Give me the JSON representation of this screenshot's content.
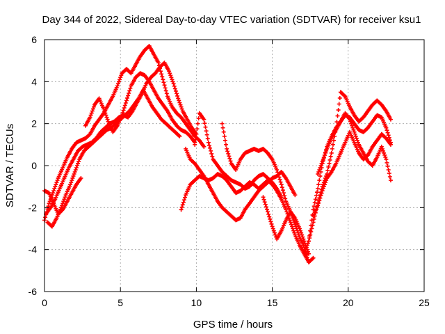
{
  "chart_data": {
    "type": "scatter",
    "title": "Day 344 of 2022, Sidereal Day-to-day VTEC variation (SDTVAR) for receiver ksu1",
    "xlabel": "GPS time / hours",
    "ylabel": "SDTVAR / TECUs",
    "xlim": [
      0,
      25
    ],
    "ylim": [
      -6,
      6
    ],
    "x_ticks": [
      "0",
      "5",
      "10",
      "15",
      "20",
      "25"
    ],
    "y_ticks": [
      "-6",
      "-4",
      "-2",
      "0",
      "2",
      "4",
      "6"
    ],
    "grid": true,
    "marker": "plus",
    "color": "#ff0000",
    "series": [
      {
        "x": [
          0.0,
          0.3,
          0.6,
          0.9,
          1.2,
          1.5,
          1.8,
          2.1,
          2.4,
          2.7,
          3.0,
          3.3,
          3.6,
          3.9,
          4.2,
          4.5,
          4.8,
          5.1,
          5.4,
          5.7,
          6.0,
          6.3,
          6.6,
          6.9,
          7.2,
          7.5,
          7.8,
          8.1,
          8.4,
          8.7,
          9.0,
          9.3,
          9.6,
          9.9,
          10.2,
          10.5
        ],
        "y": [
          -2.6,
          -1.8,
          -1.2,
          -0.6,
          -0.1,
          0.4,
          0.8,
          1.1,
          1.2,
          1.3,
          1.5,
          1.9,
          2.2,
          2.5,
          2.9,
          3.3,
          3.8,
          4.4,
          4.6,
          4.4,
          4.8,
          5.2,
          5.5,
          5.7,
          5.3,
          4.9,
          4.1,
          3.3,
          2.8,
          2.5,
          2.3,
          2.0,
          1.7,
          1.4,
          1.2,
          0.9
        ]
      },
      {
        "x": [
          0.1,
          0.4,
          0.7,
          1.0,
          1.3,
          1.6,
          1.9,
          2.2,
          2.5,
          2.8,
          3.1,
          3.4,
          3.7,
          4.0,
          4.3,
          4.6,
          4.9,
          5.2,
          5.5,
          5.8,
          6.1,
          6.4,
          6.7,
          7.0,
          7.3,
          7.6,
          7.9,
          8.2,
          8.5,
          8.8,
          9.1,
          9.4,
          9.7,
          10.0
        ],
        "y": [
          -2.3,
          -2.0,
          -1.6,
          -1.1,
          -0.6,
          -0.1,
          0.3,
          0.7,
          0.9,
          1.0,
          1.1,
          1.3,
          1.6,
          1.8,
          2.0,
          2.1,
          2.3,
          2.4,
          2.3,
          2.6,
          3.0,
          3.4,
          3.9,
          4.2,
          4.4,
          4.7,
          4.9,
          4.5,
          3.9,
          3.2,
          2.6,
          2.2,
          1.8,
          1.5
        ]
      },
      {
        "x": [
          0.2,
          0.5,
          0.8,
          1.1,
          1.4,
          1.7,
          2.0,
          2.3,
          2.6,
          2.9,
          3.2,
          3.5,
          3.8,
          4.1,
          4.4,
          4.7,
          5.0,
          5.3,
          5.6,
          5.9,
          6.2,
          6.5,
          6.8,
          7.1,
          7.4,
          7.7,
          8.0,
          8.3,
          8.6,
          8.9
        ],
        "y": [
          -2.7,
          -2.9,
          -2.5,
          -2.0,
          -1.4,
          -0.9,
          -0.3,
          0.3,
          0.7,
          0.9,
          1.1,
          1.3,
          1.5,
          1.7,
          1.8,
          2.0,
          2.2,
          2.4,
          2.6,
          2.9,
          3.2,
          3.6,
          3.2,
          2.8,
          2.5,
          2.2,
          2.0,
          1.8,
          1.6,
          1.4
        ]
      },
      {
        "x": [
          0.0,
          0.3,
          0.6,
          0.9,
          1.2,
          1.5,
          1.8,
          2.1,
          2.4
        ],
        "y": [
          -1.2,
          -1.3,
          -1.8,
          -2.3,
          -2.1,
          -1.7,
          -1.3,
          -0.9,
          -0.6
        ]
      },
      {
        "x": [
          2.7,
          3.0,
          3.3,
          3.6,
          3.9,
          4.2,
          4.5,
          4.8,
          5.1,
          5.4,
          5.7,
          6.0,
          6.3,
          6.6,
          6.9,
          7.2,
          7.5,
          7.8,
          8.1,
          8.4,
          8.7,
          9.0,
          9.3,
          9.6,
          9.9
        ],
        "y": [
          1.9,
          2.3,
          2.9,
          3.2,
          2.7,
          2.1,
          1.6,
          1.9,
          2.4,
          3.1,
          3.8,
          4.2,
          4.4,
          4.3,
          4.0,
          3.6,
          3.2,
          2.9,
          2.6,
          2.2,
          1.9,
          1.7,
          1.6,
          1.4,
          1.1
        ]
      },
      {
        "x": [
          9.0,
          9.3,
          9.6,
          9.9,
          10.2,
          10.5,
          10.8,
          11.1,
          11.4,
          11.7,
          12.0,
          12.3,
          12.6,
          12.9,
          13.2,
          13.5,
          13.8,
          14.1,
          14.4,
          14.7,
          15.0,
          15.3,
          15.6,
          15.9,
          16.2,
          16.5,
          16.8,
          17.1,
          17.4,
          17.7
        ],
        "y": [
          -2.1,
          -1.4,
          -0.9,
          -0.7,
          -0.5,
          -0.6,
          -0.7,
          -0.6,
          -0.4,
          -0.5,
          -0.7,
          -1.0,
          -1.3,
          -1.2,
          -1.0,
          -0.8,
          -0.9,
          -1.1,
          -0.9,
          -0.7,
          -0.9,
          -1.2,
          -1.6,
          -2.1,
          -2.7,
          -3.3,
          -3.8,
          -4.2,
          -4.6,
          -4.4
        ]
      },
      {
        "x": [
          9.3,
          9.6,
          9.9,
          10.2,
          10.5,
          10.8,
          11.1,
          11.4,
          11.7,
          12.0,
          12.3,
          12.6,
          12.9,
          13.2,
          13.5,
          13.8,
          14.1,
          14.4,
          14.7,
          15.0,
          15.3,
          15.6,
          15.9,
          16.2,
          16.5
        ],
        "y": [
          0.8,
          0.3,
          0.1,
          -0.2,
          -0.5,
          -0.9,
          -1.3,
          -1.7,
          -2.0,
          -2.2,
          -2.4,
          -2.6,
          -2.5,
          -2.1,
          -1.8,
          -1.5,
          -1.2,
          -1.0,
          -0.8,
          -0.6,
          -0.5,
          -0.3,
          -0.6,
          -1.0,
          -1.4
        ]
      },
      {
        "x": [
          9.9,
          10.2,
          10.5,
          10.8,
          11.1,
          11.4,
          11.7,
          12.0,
          12.3,
          12.6,
          12.9,
          13.2,
          13.5,
          13.8,
          14.1,
          14.4,
          14.7,
          15.0,
          15.3,
          15.6
        ],
        "y": [
          1.0,
          2.5,
          2.2,
          1.1,
          0.3,
          0.0,
          -0.3,
          -0.5,
          -0.7,
          -0.8,
          -0.9,
          -1.1,
          -1.0,
          -0.7,
          -0.5,
          -0.4,
          -0.6,
          -0.8,
          -1.1,
          -1.5
        ]
      },
      {
        "x": [
          11.7,
          12.0,
          12.3,
          12.6,
          12.9,
          13.2,
          13.5,
          13.8,
          14.1,
          14.4,
          14.7,
          15.0,
          15.3,
          15.6,
          15.9,
          16.2,
          16.5,
          16.8,
          17.1,
          17.4
        ],
        "y": [
          2.0,
          0.8,
          0.1,
          -0.2,
          0.3,
          0.6,
          0.7,
          0.8,
          0.7,
          0.8,
          0.6,
          0.3,
          -0.2,
          -0.9,
          -1.7,
          -2.2,
          -2.8,
          -3.4,
          -3.9,
          -4.6
        ]
      },
      {
        "x": [
          14.4,
          14.7,
          15.0,
          15.3,
          15.6,
          15.9,
          16.2,
          16.5,
          16.8,
          17.1,
          17.4
        ],
        "y": [
          -1.5,
          -2.2,
          -2.9,
          -3.5,
          -3.1,
          -2.6,
          -2.2,
          -2.5,
          -3.0,
          -3.6,
          -4.2
        ]
      },
      {
        "x": [
          17.1,
          17.4,
          17.7,
          18.0,
          18.3,
          18.6,
          18.9,
          19.2,
          19.5,
          19.8,
          20.1,
          20.4,
          20.7,
          21.0,
          21.3,
          21.6,
          21.9,
          22.2,
          22.5,
          22.8
        ],
        "y": [
          -4.2,
          -3.6,
          -2.7,
          -1.8,
          -1.0,
          -0.4,
          0.6,
          1.8,
          3.5,
          3.3,
          2.8,
          2.4,
          2.1,
          2.3,
          2.6,
          2.9,
          3.1,
          2.9,
          2.6,
          2.2
        ]
      },
      {
        "x": [
          17.4,
          17.7,
          18.0,
          18.3,
          18.6,
          18.9,
          19.2,
          19.5,
          19.8,
          20.1,
          20.4,
          20.7,
          21.0,
          21.3,
          21.6,
          21.9,
          22.2,
          22.5,
          22.8
        ],
        "y": [
          -3.6,
          -2.1,
          -1.1,
          0.1,
          0.9,
          1.4,
          1.8,
          2.1,
          2.4,
          2.3,
          2.0,
          1.7,
          1.6,
          1.8,
          2.1,
          2.4,
          2.3,
          1.8,
          1.1
        ]
      },
      {
        "x": [
          17.7,
          18.0,
          18.3,
          18.6,
          18.9,
          19.2,
          19.5,
          19.8,
          20.1,
          20.4,
          20.7,
          21.0,
          21.3,
          21.6,
          21.9,
          22.2,
          22.5,
          22.8
        ],
        "y": [
          -2.4,
          -1.9,
          -1.2,
          -0.6,
          -0.3,
          0.1,
          0.6,
          1.1,
          1.6,
          1.1,
          0.6,
          0.3,
          0.5,
          0.9,
          1.2,
          1.5,
          1.3,
          1.0
        ]
      },
      {
        "x": [
          18.0,
          18.3,
          18.6,
          18.9,
          19.2,
          19.5,
          19.8,
          20.1,
          20.4,
          20.7,
          21.0,
          21.3,
          21.6,
          21.9,
          22.2,
          22.5,
          22.8
        ],
        "y": [
          -0.4,
          0.2,
          0.8,
          1.3,
          1.7,
          2.1,
          2.5,
          2.2,
          1.6,
          1.0,
          0.6,
          0.2,
          0.0,
          0.4,
          0.9,
          0.3,
          -0.7
        ]
      }
    ]
  }
}
